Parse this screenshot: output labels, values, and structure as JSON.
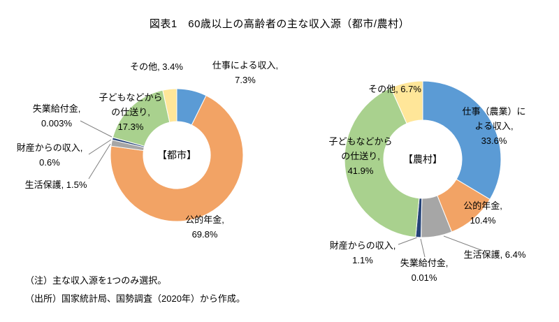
{
  "title": "図表1　60歳以上の高齢者の主な収入源（都市/農村）",
  "notes": [
    "（注）主な収入源を1つのみ選択。",
    "（出所）国家統計局、国勢調査（2020年）から作成。"
  ],
  "colors": {
    "work": "#5B9BD5",
    "pension": "#F2A365",
    "welfare": "#A6A6A6",
    "property": "#264478",
    "unemployment": "#843C0C",
    "children": "#A9D18E",
    "other": "#FFE699"
  },
  "chart_data": [
    {
      "type": "pie",
      "variant": "donut",
      "region": "都市",
      "center_label": "【都市】",
      "unit": "%",
      "donut_hole": 0.5,
      "segments": [
        {
          "name": "仕事による収入",
          "value": 7.3,
          "color": "#5B9BD5",
          "label": "仕事による収入,\n7.3%"
        },
        {
          "name": "公的年金",
          "value": 69.8,
          "color": "#F2A365",
          "label": "公的年金,\n69.8%"
        },
        {
          "name": "生活保護",
          "value": 1.5,
          "color": "#A6A6A6",
          "label": "生活保護, 1.5%"
        },
        {
          "name": "財産からの収入",
          "value": 0.6,
          "color": "#264478",
          "label": "財産からの収入,\n0.6%"
        },
        {
          "name": "失業給付金",
          "value": 0.003,
          "color": "#843C0C",
          "label": "失業給付金,\n0.003%"
        },
        {
          "name": "子どもなどからの仕送り",
          "value": 17.3,
          "color": "#A9D18E",
          "label": "子どもなどから\nの仕送り,\n17.3%"
        },
        {
          "name": "その他",
          "value": 3.4,
          "color": "#FFE699",
          "label": "その他, 3.4%"
        }
      ]
    },
    {
      "type": "pie",
      "variant": "donut",
      "region": "農村",
      "center_label": "【農村】",
      "unit": "%",
      "donut_hole": 0.5,
      "segments": [
        {
          "name": "仕事（農業）による収入",
          "value": 33.6,
          "color": "#5B9BD5",
          "label": "仕事（農業）に\nよる収入,\n33.6%"
        },
        {
          "name": "公的年金",
          "value": 10.4,
          "color": "#F2A365",
          "label": "公的年金,\n10.4%"
        },
        {
          "name": "生活保護",
          "value": 6.4,
          "color": "#A6A6A6",
          "label": "生活保護, 6.4%"
        },
        {
          "name": "失業給付金",
          "value": 0.01,
          "color": "#843C0C",
          "label": "失業給付金,\n0.01%"
        },
        {
          "name": "財産からの収入",
          "value": 1.1,
          "color": "#264478",
          "label": "財産からの収入,\n1.1%"
        },
        {
          "name": "子どもなどからの仕送り",
          "value": 41.9,
          "color": "#A9D18E",
          "label": "子どもなどから\nの仕送り,\n41.9%"
        },
        {
          "name": "その他",
          "value": 6.7,
          "color": "#FFE699",
          "label": "その他, 6.7%"
        }
      ]
    }
  ]
}
